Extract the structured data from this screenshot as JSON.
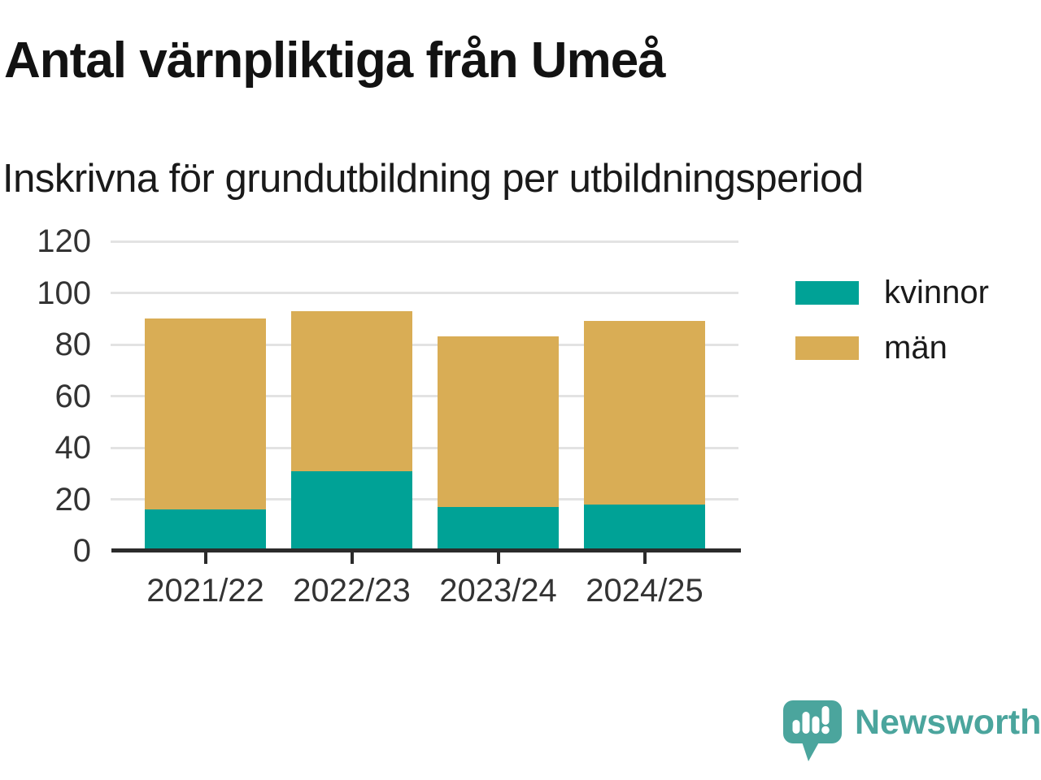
{
  "title": "Antal värnpliktiga från Umeå",
  "subtitle": "Inskrivna för grundutbildning per utbildningsperiod",
  "chart_data": {
    "type": "bar",
    "stacked": true,
    "title": "Antal värnpliktiga från Umeå",
    "subtitle": "Inskrivna för grundutbildning per utbildningsperiod",
    "categories": [
      "2021/22",
      "2022/23",
      "2023/24",
      "2024/25"
    ],
    "series": [
      {
        "name": "kvinnor",
        "color": "#00a296",
        "values": [
          16,
          31,
          17,
          18
        ]
      },
      {
        "name": "män",
        "color": "#d9ad55",
        "values": [
          74,
          62,
          66,
          71
        ]
      }
    ],
    "totals": [
      90,
      93,
      83,
      89
    ],
    "xlabel": "",
    "ylabel": "",
    "ylim": [
      0,
      120
    ],
    "yticks": [
      0,
      20,
      40,
      60,
      80,
      100,
      120
    ],
    "grid": true,
    "gridline_color": "#e3e3e3",
    "axis_color": "#2b2b2b",
    "legend_position": "right"
  },
  "legend": {
    "items": [
      {
        "label": "kvinnor",
        "color": "#00a296"
      },
      {
        "label": "män",
        "color": "#d9ad55"
      }
    ]
  },
  "branding": {
    "logo_text": "Newsworthy",
    "logo_icon": "bar-chart-speech-bubble-icon",
    "color": "#4ba59d"
  }
}
